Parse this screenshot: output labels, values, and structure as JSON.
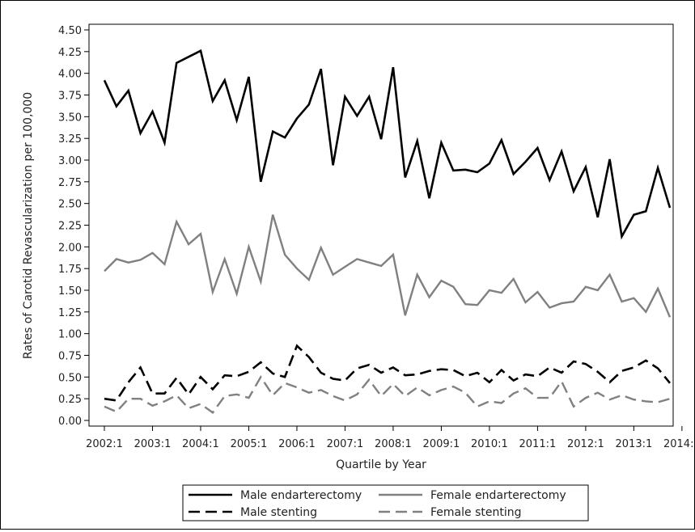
{
  "chart_data": {
    "type": "line",
    "xlabel": "Quartile by Year",
    "ylabel": "Rates of Carotid Revascularization per 100,000",
    "ylim": [
      0,
      4.5
    ],
    "yticks": [
      "0.00",
      "0.25",
      "0.50",
      "0.75",
      "1.00",
      "1.25",
      "1.50",
      "1.75",
      "2.00",
      "2.25",
      "2.50",
      "2.75",
      "3.00",
      "3.25",
      "3.50",
      "3.75",
      "4.00",
      "4.25",
      "4.50"
    ],
    "xticks": [
      "2002:1",
      "2003:1",
      "2004:1",
      "2005:1",
      "2006:1",
      "2007:1",
      "2008:1",
      "2009:1",
      "2010:1",
      "2011:1",
      "2012:1",
      "2013:1",
      "2014:1"
    ],
    "legend_position": "bottom",
    "series": [
      {
        "name": "Male endarterectomy",
        "color": "#000000",
        "dash": "solid",
        "values": [
          3.92,
          3.62,
          3.8,
          3.31,
          3.56,
          3.2,
          4.12,
          4.19,
          4.26,
          3.68,
          3.92,
          3.46,
          3.96,
          2.75,
          3.33,
          3.26,
          3.48,
          3.64,
          4.05,
          2.94,
          3.73,
          3.51,
          3.73,
          3.24,
          4.07,
          2.8,
          3.22,
          2.56,
          3.2,
          2.88,
          2.89,
          2.86,
          2.96,
          3.23,
          2.84,
          2.98,
          3.14,
          2.77,
          3.1,
          2.64,
          2.92,
          2.34,
          3.01,
          2.12,
          2.37,
          2.41,
          2.91,
          2.45
        ]
      },
      {
        "name": "Female endarterectomy",
        "color": "#808080",
        "dash": "solid",
        "values": [
          1.72,
          1.86,
          1.82,
          1.85,
          1.93,
          1.8,
          2.29,
          2.03,
          2.15,
          1.48,
          1.86,
          1.46,
          2.0,
          1.6,
          2.37,
          1.91,
          1.75,
          1.62,
          1.99,
          1.68,
          1.77,
          1.86,
          1.82,
          1.78,
          1.91,
          1.21,
          1.68,
          1.42,
          1.61,
          1.54,
          1.34,
          1.33,
          1.5,
          1.47,
          1.63,
          1.36,
          1.48,
          1.3,
          1.35,
          1.37,
          1.54,
          1.5,
          1.68,
          1.37,
          1.41,
          1.25,
          1.52,
          1.19
        ]
      },
      {
        "name": "Male stenting",
        "color": "#000000",
        "dash": "dash",
        "values": [
          0.25,
          0.23,
          0.44,
          0.61,
          0.31,
          0.31,
          0.49,
          0.3,
          0.5,
          0.36,
          0.52,
          0.51,
          0.56,
          0.67,
          0.54,
          0.5,
          0.86,
          0.73,
          0.55,
          0.48,
          0.46,
          0.6,
          0.64,
          0.55,
          0.61,
          0.52,
          0.53,
          0.57,
          0.59,
          0.58,
          0.51,
          0.55,
          0.44,
          0.58,
          0.46,
          0.53,
          0.51,
          0.61,
          0.55,
          0.68,
          0.65,
          0.56,
          0.44,
          0.57,
          0.61,
          0.69,
          0.6,
          0.43
        ]
      },
      {
        "name": "Female stenting",
        "color": "#808080",
        "dash": "dash",
        "values": [
          0.16,
          0.1,
          0.25,
          0.25,
          0.17,
          0.22,
          0.29,
          0.14,
          0.19,
          0.09,
          0.28,
          0.3,
          0.26,
          0.5,
          0.29,
          0.43,
          0.38,
          0.32,
          0.35,
          0.28,
          0.23,
          0.3,
          0.47,
          0.28,
          0.42,
          0.28,
          0.38,
          0.29,
          0.35,
          0.39,
          0.32,
          0.16,
          0.22,
          0.2,
          0.31,
          0.37,
          0.26,
          0.26,
          0.45,
          0.16,
          0.26,
          0.32,
          0.24,
          0.29,
          0.24,
          0.22,
          0.21,
          0.25
        ]
      }
    ]
  }
}
